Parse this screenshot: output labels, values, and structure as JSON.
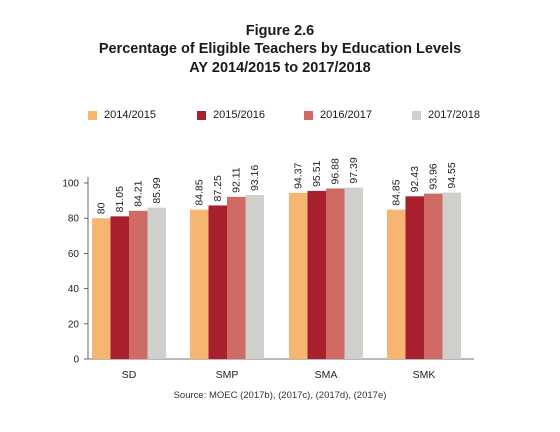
{
  "figure": {
    "label": "Figure 2.6",
    "title": "Percentage of Eligible Teachers by Education Levels",
    "subtitle": "AY 2014/2015 to 2017/2018"
  },
  "source": "Source: MOEC (2017b), (2017c), (2017d), (2017e)",
  "chart_data": {
    "type": "bar",
    "categories": [
      "SD",
      "SMP",
      "SMA",
      "SMK"
    ],
    "series": [
      {
        "name": "2014/2015",
        "color": "#F6B672",
        "values": [
          80,
          84.85,
          94.37,
          84.85
        ],
        "labels": [
          "80",
          "84.85",
          "94.37",
          "84.85"
        ]
      },
      {
        "name": "2015/2016",
        "color": "#A8202E",
        "values": [
          81.05,
          87.25,
          95.51,
          92.43
        ],
        "labels": [
          "81.05",
          "87.25",
          "95.51",
          "92.43"
        ]
      },
      {
        "name": "2016/2017",
        "color": "#CF6A65",
        "values": [
          84.21,
          92.11,
          96.88,
          93.96
        ],
        "labels": [
          "84.21",
          "92.11",
          "96.88",
          "93.96"
        ]
      },
      {
        "name": "2017/2018",
        "color": "#CFCFCC",
        "values": [
          85.99,
          93.16,
          97.39,
          94.55
        ],
        "labels": [
          "85.99",
          "93.16",
          "97.39",
          "94.55"
        ]
      }
    ],
    "yticks": [
      "0",
      "20",
      "40",
      "60",
      "80",
      "100"
    ],
    "ylim": [
      0,
      100
    ],
    "xlabel": "",
    "ylabel": "",
    "legend": "top",
    "grid": false
  }
}
